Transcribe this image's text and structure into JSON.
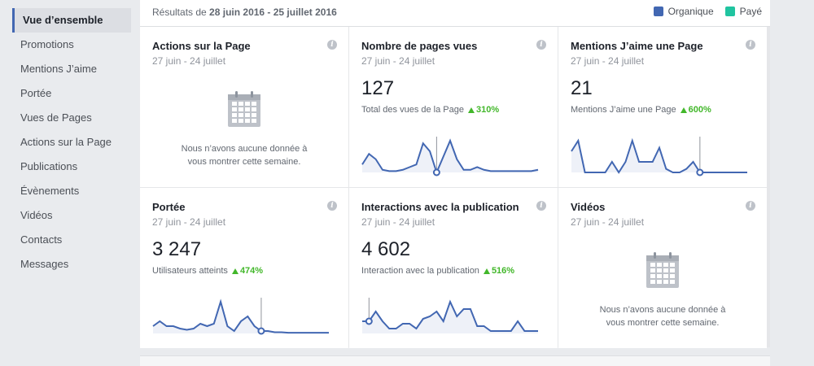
{
  "sidebar": {
    "items": [
      {
        "label": "Vue d’ensemble",
        "active": true
      },
      {
        "label": "Promotions"
      },
      {
        "label": "Mentions J’aime"
      },
      {
        "label": "Portée"
      },
      {
        "label": "Vues de Pages"
      },
      {
        "label": "Actions sur la Page"
      },
      {
        "label": "Publications"
      },
      {
        "label": "Évènements"
      },
      {
        "label": "Vidéos"
      },
      {
        "label": "Contacts"
      },
      {
        "label": "Messages"
      }
    ]
  },
  "header": {
    "results_prefix": "Résultats de",
    "results_range": "28 juin 2016 - 25 juillet 2016",
    "legend": [
      {
        "label": "Organique",
        "color": "#4267b2"
      },
      {
        "label": "Payé",
        "color": "#20c4a0"
      }
    ]
  },
  "colors": {
    "accent": "#4267b2",
    "positive": "#42b72a",
    "spark_fill": "#eef1f8"
  },
  "cards": [
    {
      "title": "Actions sur la Page",
      "date": "27 juin - 24 juillet",
      "empty": true,
      "empty_text": "Nous n’avons aucune donnée à vous montrer cette semaine.",
      "icon": "calendar-icon"
    },
    {
      "title": "Nombre de pages vues",
      "date": "27 juin - 24 juillet",
      "value": "127",
      "sub_label": "Total des vues de la Page",
      "change": "310%",
      "spark": [
        3,
        7,
        5,
        1,
        0.5,
        0.5,
        1,
        2,
        3,
        11,
        8,
        0,
        6,
        12,
        5,
        1,
        1,
        2,
        1,
        0.5,
        0.5,
        0.5,
        0.5,
        0.5,
        0.5,
        0.5,
        1
      ],
      "marker": 11
    },
    {
      "title": "Mentions J’aime une Page",
      "date": "27 juin - 24 juillet",
      "value": "21",
      "sub_label": "Mentions J’aime une Page",
      "change": "600%",
      "spark": [
        6,
        9,
        0,
        0,
        0,
        0,
        3,
        0,
        3,
        9,
        3,
        3,
        3,
        7,
        1,
        0,
        0,
        1,
        3,
        0,
        0,
        0,
        0,
        0,
        0,
        0,
        0
      ],
      "marker": 19
    },
    {
      "title": "Portée",
      "date": "27 juin - 24 juillet",
      "value": "3 247",
      "sub_label": "Utilisateurs atteints",
      "change": "474%",
      "spark": [
        3,
        5,
        3,
        3,
        2,
        1.5,
        2,
        4,
        3,
        4,
        13,
        3,
        1,
        5,
        7,
        3,
        1,
        1,
        0.5,
        0.5,
        0.3,
        0.3,
        0.3,
        0.3,
        0.3,
        0.3,
        0.3
      ],
      "marker": 16
    },
    {
      "title": "Interactions avec la publication",
      "date": "27 juin - 24 juillet",
      "value": "4 602",
      "sub_label": "Interaction avec la publication",
      "change": "516%",
      "spark": [
        5,
        5,
        9,
        5,
        2,
        2,
        4,
        4,
        2,
        6,
        7,
        9,
        5,
        13,
        7,
        10,
        10,
        3,
        3,
        1,
        1,
        1,
        1,
        5,
        1,
        1,
        1
      ],
      "marker": 1
    },
    {
      "title": "Vidéos",
      "date": "27 juin - 24 juillet",
      "empty": true,
      "empty_text": "Nous n’avons aucune donnée à vous montrer cette semaine.",
      "icon": "calendar-icon"
    }
  ]
}
